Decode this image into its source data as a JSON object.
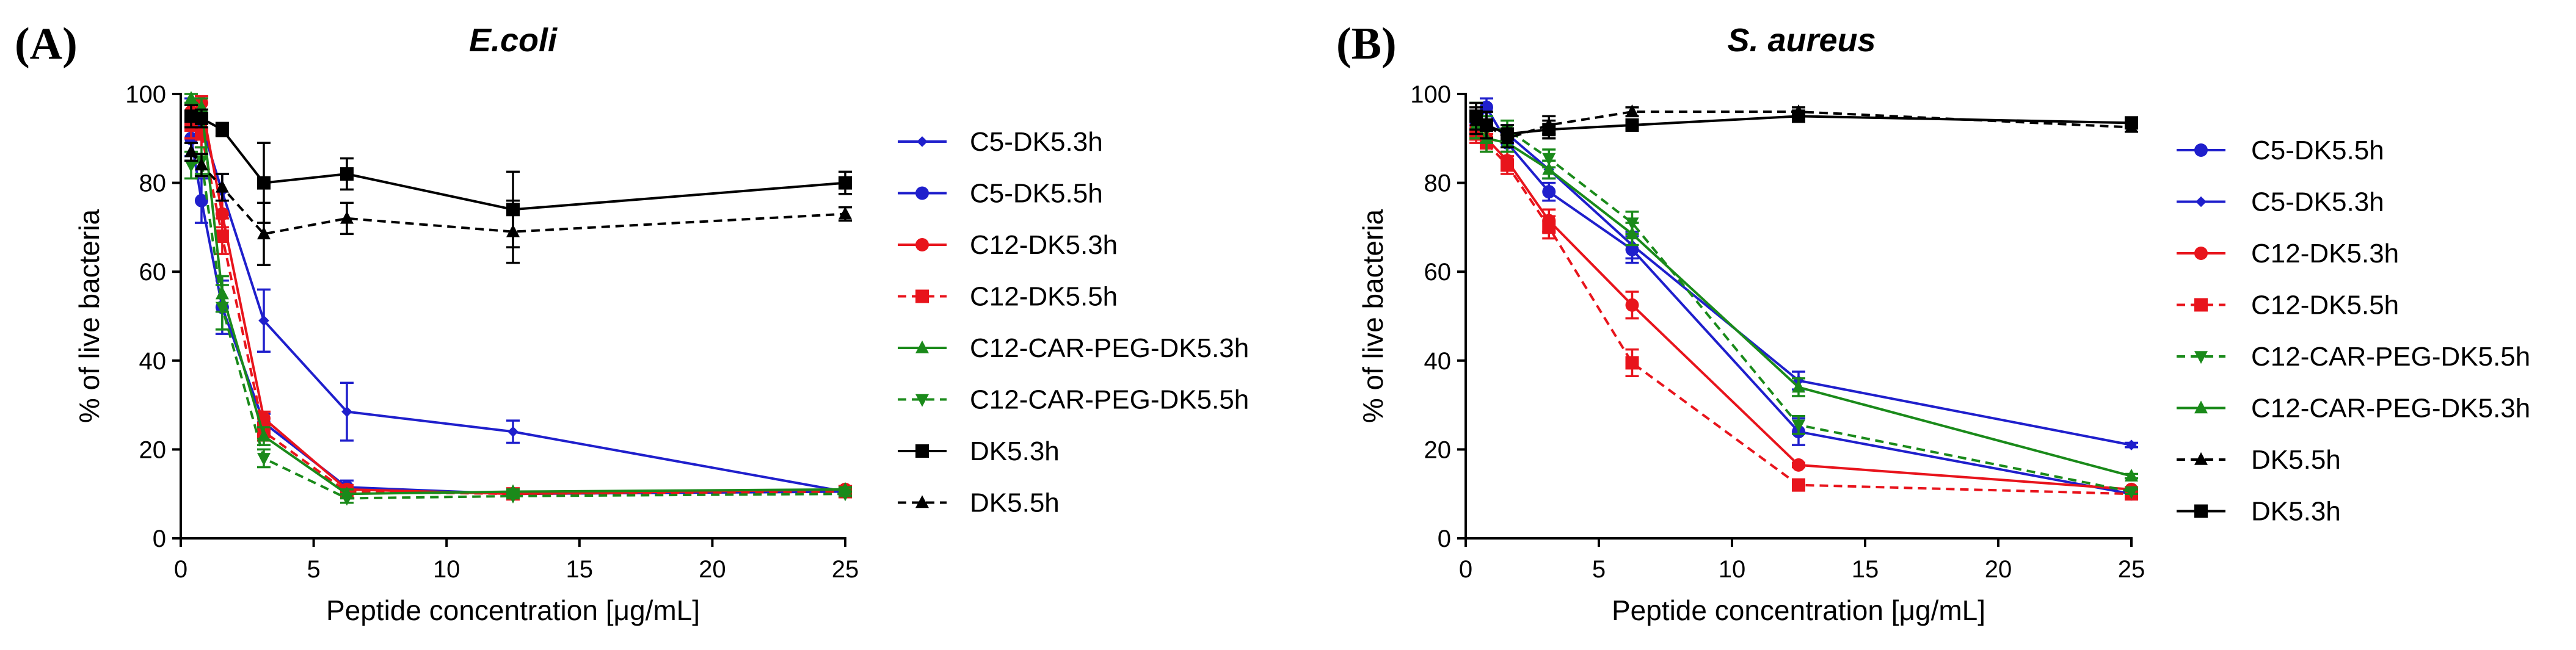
{
  "figure": {
    "panel_labels": [
      "(A)",
      "(B)"
    ]
  },
  "chart_data": [
    {
      "type": "line",
      "panel": "(A)",
      "title": "E.coli",
      "xlabel": "Peptide concentration [μg/mL]",
      "ylabel": "% of live bacteria",
      "xlim": [
        0,
        25
      ],
      "ylim": [
        0,
        100
      ],
      "xticks": [
        0,
        5,
        10,
        15,
        20,
        25
      ],
      "yticks": [
        0,
        20,
        40,
        60,
        80,
        100
      ],
      "grid": false,
      "legend_position": "right",
      "series": [
        {
          "name": "C5-DK5.3h",
          "color": "#1f1fcc",
          "marker": "diamond",
          "dash": false,
          "x": [
            0.39,
            0.78,
            1.56,
            3.125,
            6.25,
            12.5,
            25
          ],
          "y": [
            96,
            93,
            78,
            49,
            28.5,
            24,
            10.5
          ],
          "err": [
            3,
            5,
            4,
            7,
            6.5,
            2.5,
            1
          ]
        },
        {
          "name": "C5-DK5.5h",
          "color": "#1f1fcc",
          "marker": "circle",
          "dash": false,
          "x": [
            0.39,
            0.78,
            1.56,
            3.125,
            6.25,
            12.5,
            25
          ],
          "y": [
            90,
            76,
            52,
            26,
            11.5,
            10,
            10.5
          ],
          "err": [
            4,
            5,
            6,
            2,
            1.5,
            0.5,
            0.5
          ]
        },
        {
          "name": "C12-DK5.3h",
          "color": "#e8141c",
          "marker": "circle",
          "dash": false,
          "x": [
            0.39,
            0.78,
            1.56,
            3.125,
            6.25,
            12.5,
            25
          ],
          "y": [
            96,
            98,
            73,
            27,
            11,
            10,
            11
          ],
          "err": [
            2,
            1.5,
            3,
            1.5,
            1,
            0.5,
            0.5
          ]
        },
        {
          "name": "C12-DK5.5h",
          "color": "#e8141c",
          "marker": "square",
          "dash": true,
          "x": [
            0.39,
            0.78,
            1.56,
            3.125,
            6.25,
            12.5,
            25
          ],
          "y": [
            93,
            91,
            68,
            24,
            10.5,
            10,
            10.5
          ],
          "err": [
            3,
            3,
            4,
            2,
            1,
            0.5,
            0.5
          ]
        },
        {
          "name": "C12-CAR-PEG-DK5.3h",
          "color": "#1a8a1a",
          "marker": "triangle-up",
          "dash": false,
          "x": [
            0.39,
            0.78,
            1.56,
            3.125,
            6.25,
            12.5,
            25
          ],
          "y": [
            99,
            97,
            55,
            23,
            10,
            10.5,
            11
          ],
          "err": [
            1,
            2,
            4,
            2,
            1,
            0.5,
            0.5
          ]
        },
        {
          "name": "C12-CAR-PEG-DK5.5h",
          "color": "#1a8a1a",
          "marker": "triangle-down",
          "dash": true,
          "x": [
            0.39,
            0.78,
            1.56,
            3.125,
            6.25,
            12.5,
            25
          ],
          "y": [
            84,
            85,
            52,
            18,
            9,
            9.5,
            10
          ],
          "err": [
            3,
            3,
            5,
            2,
            1,
            0.5,
            0.5
          ]
        },
        {
          "name": "DK5.3h",
          "color": "#000000",
          "marker": "square",
          "dash": false,
          "x": [
            0.39,
            0.78,
            1.56,
            3.125,
            6.25,
            12.5,
            25
          ],
          "y": [
            95,
            94.5,
            92,
            80,
            82,
            74,
            80
          ],
          "err": [
            2.5,
            2,
            1.5,
            9,
            3.5,
            8.5,
            2.5
          ]
        },
        {
          "name": "DK5.5h",
          "color": "#000000",
          "marker": "triangle-up",
          "dash": true,
          "x": [
            0.39,
            0.78,
            1.56,
            3.125,
            6.25,
            12.5,
            25
          ],
          "y": [
            87,
            84,
            79,
            68.5,
            72,
            69,
            73
          ],
          "err": [
            2,
            2.5,
            3,
            7,
            3.5,
            7,
            1.5
          ]
        }
      ]
    },
    {
      "type": "line",
      "panel": "(B)",
      "title": "S. aureus",
      "xlabel": "Peptide concentration [μg/mL]",
      "ylabel": "% of live bacteria",
      "xlim": [
        0,
        25
      ],
      "ylim": [
        0,
        100
      ],
      "xticks": [
        0,
        5,
        10,
        15,
        20,
        25
      ],
      "yticks": [
        0,
        20,
        40,
        60,
        80,
        100
      ],
      "grid": false,
      "legend_position": "right",
      "series": [
        {
          "name": "C5-DK5.5h",
          "color": "#1f1fcc",
          "marker": "circle",
          "dash": false,
          "x": [
            0.39,
            0.78,
            1.56,
            3.125,
            6.25,
            12.5,
            25
          ],
          "y": [
            93,
            97,
            89,
            78,
            65,
            24,
            10
          ],
          "err": [
            2,
            2,
            2,
            2,
            3,
            3,
            0.5
          ]
        },
        {
          "name": "C5-DK5.3h",
          "color": "#1f1fcc",
          "marker": "diamond",
          "dash": false,
          "x": [
            0.39,
            0.78,
            1.56,
            3.125,
            6.25,
            12.5,
            25
          ],
          "y": [
            94,
            93,
            91,
            83,
            66,
            35.5,
            21
          ],
          "err": [
            2,
            2,
            2,
            2,
            3,
            2,
            0.5
          ]
        },
        {
          "name": "C12-DK5.3h",
          "color": "#e8141c",
          "marker": "circle",
          "dash": false,
          "x": [
            0.39,
            0.78,
            1.56,
            3.125,
            6.25,
            12.5,
            25
          ],
          "y": [
            92,
            90,
            85,
            71.5,
            52.5,
            16.5,
            11
          ],
          "err": [
            2,
            2,
            2,
            2.5,
            3,
            0.5,
            0.5
          ]
        },
        {
          "name": "C12-DK5.5h",
          "color": "#e8141c",
          "marker": "square",
          "dash": true,
          "x": [
            0.39,
            0.78,
            1.56,
            3.125,
            6.25,
            12.5,
            25
          ],
          "y": [
            91,
            89,
            84,
            70,
            39.5,
            12,
            10
          ],
          "err": [
            2,
            2,
            2,
            2.5,
            3,
            0.5,
            0.5
          ]
        },
        {
          "name": "C12-CAR-PEG-DK5.5h",
          "color": "#1a8a1a",
          "marker": "triangle-down",
          "dash": true,
          "x": [
            0.39,
            0.78,
            1.56,
            3.125,
            6.25,
            12.5,
            25
          ],
          "y": [
            95,
            92,
            92,
            85.5,
            71,
            25.5,
            10.5
          ],
          "err": [
            3,
            3,
            2,
            2,
            2.5,
            2,
            0.5
          ]
        },
        {
          "name": "C12-CAR-PEG-DK5.3h",
          "color": "#1a8a1a",
          "marker": "triangle-up",
          "dash": false,
          "x": [
            0.39,
            0.78,
            1.56,
            3.125,
            6.25,
            12.5,
            25
          ],
          "y": [
            93,
            90,
            89,
            83,
            68.5,
            34,
            14
          ],
          "err": [
            3,
            3,
            2,
            2,
            2.5,
            2,
            0.5
          ]
        },
        {
          "name": "DK5.5h",
          "color": "#000000",
          "marker": "triangle-up",
          "dash": true,
          "x": [
            0.39,
            0.78,
            1.56,
            3.125,
            6.25,
            12.5,
            25
          ],
          "y": [
            94,
            93,
            90,
            93,
            96,
            96,
            92.5
          ],
          "err": [
            3,
            3,
            2,
            2,
            1,
            1,
            1
          ]
        },
        {
          "name": "DK5.3h",
          "color": "#000000",
          "marker": "square",
          "dash": false,
          "x": [
            0.39,
            0.78,
            1.56,
            3.125,
            6.25,
            12.5,
            25
          ],
          "y": [
            95,
            93,
            91,
            92,
            93,
            95,
            93.5
          ],
          "err": [
            3,
            3,
            2,
            2,
            1,
            1,
            1
          ]
        }
      ]
    }
  ]
}
